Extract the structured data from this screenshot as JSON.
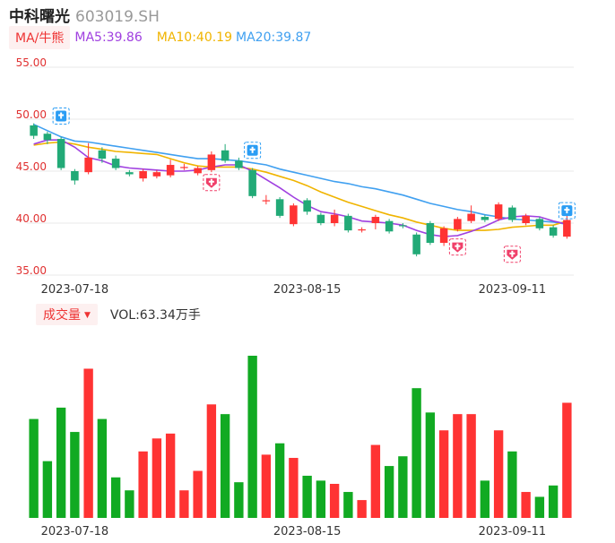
{
  "header": {
    "name": "中科曙光",
    "code": "603019.SH"
  },
  "ma_legend": {
    "tag": "MA/牛熊",
    "ma5": "MA5:39.86",
    "ma10": "MA10:40.19",
    "ma20": "MA20:39.87"
  },
  "volume_legend": {
    "tag": "成交量",
    "text": "VOL:63.34万手"
  },
  "colors": {
    "up": "#ff3333",
    "down": "#22aa77",
    "vol_down": "#11aa22",
    "ma5": "#a040e0",
    "ma10": "#f0b400",
    "ma20": "#40a0f0",
    "grid": "#e8e8e8",
    "axis_label": "#e03030"
  },
  "chart_data": [
    {
      "type": "candlestick",
      "title": "",
      "y_ticks": [
        "55.00",
        "50.00",
        "45.00",
        "40.00",
        "35.00"
      ],
      "ylim": [
        35,
        55
      ],
      "x_tick_labels": [
        {
          "label": "2023-07-18",
          "index": 3
        },
        {
          "label": "2023-08-15",
          "index": 20
        },
        {
          "label": "2023-09-11",
          "index": 35
        }
      ],
      "candles": [
        {
          "o": 49.4,
          "c": 48.4,
          "h": 49.6,
          "l": 48.1
        },
        {
          "o": 48.6,
          "c": 48.0,
          "h": 48.8,
          "l": 47.6
        },
        {
          "o": 48.1,
          "c": 45.3,
          "h": 48.3,
          "l": 45.1
        },
        {
          "o": 45.0,
          "c": 44.1,
          "h": 45.2,
          "l": 43.7
        },
        {
          "o": 44.9,
          "c": 46.3,
          "h": 47.7,
          "l": 44.7
        },
        {
          "o": 47.0,
          "c": 46.2,
          "h": 47.3,
          "l": 45.8
        },
        {
          "o": 46.2,
          "c": 45.3,
          "h": 46.5,
          "l": 45.1
        },
        {
          "o": 44.9,
          "c": 44.7,
          "h": 45.1,
          "l": 44.5
        },
        {
          "o": 44.3,
          "c": 45.0,
          "h": 45.2,
          "l": 44.0
        },
        {
          "o": 44.5,
          "c": 44.9,
          "h": 45.1,
          "l": 44.3
        },
        {
          "o": 44.6,
          "c": 45.6,
          "h": 46.1,
          "l": 44.4
        },
        {
          "o": 45.4,
          "c": 45.4,
          "h": 45.7,
          "l": 45.1
        },
        {
          "o": 44.8,
          "c": 45.3,
          "h": 45.5,
          "l": 44.6
        },
        {
          "o": 45.1,
          "c": 46.6,
          "h": 46.9,
          "l": 44.9
        },
        {
          "o": 47.0,
          "c": 46.0,
          "h": 47.6,
          "l": 45.8
        },
        {
          "o": 46.0,
          "c": 45.3,
          "h": 46.3,
          "l": 45.1
        },
        {
          "o": 45.1,
          "c": 42.6,
          "h": 45.3,
          "l": 42.4
        },
        {
          "o": 42.1,
          "c": 42.2,
          "h": 42.7,
          "l": 41.8
        },
        {
          "o": 42.3,
          "c": 40.7,
          "h": 42.5,
          "l": 40.5
        },
        {
          "o": 39.9,
          "c": 41.7,
          "h": 41.9,
          "l": 39.7
        },
        {
          "o": 42.2,
          "c": 41.1,
          "h": 42.4,
          "l": 40.8
        },
        {
          "o": 40.8,
          "c": 40.0,
          "h": 41.0,
          "l": 39.8
        },
        {
          "o": 40.0,
          "c": 40.8,
          "h": 41.3,
          "l": 39.7
        },
        {
          "o": 40.7,
          "c": 39.3,
          "h": 40.9,
          "l": 39.1
        },
        {
          "o": 39.3,
          "c": 39.4,
          "h": 39.6,
          "l": 39.1
        },
        {
          "o": 40.0,
          "c": 40.6,
          "h": 40.8,
          "l": 39.4
        },
        {
          "o": 40.2,
          "c": 39.2,
          "h": 40.4,
          "l": 39.0
        },
        {
          "o": 39.8,
          "c": 39.7,
          "h": 40.0,
          "l": 39.5
        },
        {
          "o": 38.9,
          "c": 37.0,
          "h": 39.1,
          "l": 36.8
        },
        {
          "o": 40.0,
          "c": 38.1,
          "h": 40.2,
          "l": 37.9
        },
        {
          "o": 38.1,
          "c": 39.5,
          "h": 39.7,
          "l": 37.8
        },
        {
          "o": 39.4,
          "c": 40.4,
          "h": 40.6,
          "l": 39.2
        },
        {
          "o": 40.2,
          "c": 40.9,
          "h": 41.7,
          "l": 40.0
        },
        {
          "o": 40.6,
          "c": 40.3,
          "h": 40.8,
          "l": 40.1
        },
        {
          "o": 40.4,
          "c": 41.8,
          "h": 42.0,
          "l": 40.2
        },
        {
          "o": 41.5,
          "c": 40.3,
          "h": 41.7,
          "l": 40.1
        },
        {
          "o": 40.0,
          "c": 40.7,
          "h": 40.9,
          "l": 39.8
        },
        {
          "o": 40.4,
          "c": 39.5,
          "h": 40.6,
          "l": 39.3
        },
        {
          "o": 39.6,
          "c": 38.8,
          "h": 39.8,
          "l": 38.6
        },
        {
          "o": 38.7,
          "c": 40.3,
          "h": 41.7,
          "l": 38.5
        }
      ],
      "ma5": [
        47.6,
        48.0,
        48.0,
        47.3,
        46.3,
        46.0,
        45.5,
        45.3,
        45.2,
        45.1,
        45.0,
        45.0,
        45.1,
        45.4,
        45.6,
        45.6,
        45.0,
        44.2,
        43.4,
        42.5,
        41.7,
        41.1,
        40.9,
        40.6,
        40.2,
        40.1,
        40.0,
        39.8,
        39.3,
        38.9,
        38.7,
        38.8,
        39.2,
        39.7,
        40.3,
        40.6,
        40.7,
        40.6,
        40.2,
        39.9
      ],
      "ma10": [
        47.5,
        47.7,
        47.8,
        47.6,
        47.3,
        47.1,
        46.9,
        46.8,
        46.7,
        46.6,
        46.2,
        45.8,
        45.5,
        45.4,
        45.4,
        45.4,
        45.2,
        44.9,
        44.5,
        44.1,
        43.6,
        43.0,
        42.5,
        42.0,
        41.6,
        41.2,
        40.8,
        40.5,
        40.1,
        39.8,
        39.5,
        39.3,
        39.3,
        39.3,
        39.4,
        39.6,
        39.7,
        39.8,
        39.8,
        40.2
      ],
      "ma20": [
        49.5,
        48.9,
        48.3,
        47.9,
        47.8,
        47.6,
        47.4,
        47.2,
        47.0,
        46.8,
        46.6,
        46.4,
        46.2,
        46.2,
        46.1,
        46.0,
        45.8,
        45.6,
        45.2,
        44.9,
        44.6,
        44.3,
        44.0,
        43.8,
        43.5,
        43.3,
        43.0,
        42.7,
        42.3,
        41.9,
        41.6,
        41.3,
        41.1,
        40.8,
        40.6,
        40.4,
        40.3,
        40.2,
        40.1,
        39.9
      ],
      "markers": [
        {
          "index": 2,
          "price": 50.3,
          "kind": "bull"
        },
        {
          "index": 13,
          "price": 43.9,
          "kind": "bear"
        },
        {
          "index": 16,
          "price": 47.0,
          "kind": "bull"
        },
        {
          "index": 31,
          "price": 37.7,
          "kind": "bear"
        },
        {
          "index": 35,
          "price": 37.0,
          "kind": "bear"
        },
        {
          "index": 39,
          "price": 41.2,
          "kind": "bull"
        }
      ]
    },
    {
      "type": "bar",
      "title": "",
      "ylim": [
        0,
        100
      ],
      "x_tick_labels": [
        {
          "label": "2023-07-18",
          "index": 3
        },
        {
          "label": "2023-08-15",
          "index": 20
        },
        {
          "label": "2023-09-11",
          "index": 35
        }
      ],
      "values": [
        61,
        35,
        68,
        53,
        92,
        61,
        25,
        17,
        41,
        49,
        52,
        17,
        29,
        70,
        64,
        22,
        100,
        39,
        46,
        37,
        26,
        23,
        21,
        16,
        11,
        45,
        32,
        38,
        80,
        65,
        54,
        64,
        64,
        23,
        54,
        41,
        16,
        13,
        20,
        71
      ]
    }
  ]
}
